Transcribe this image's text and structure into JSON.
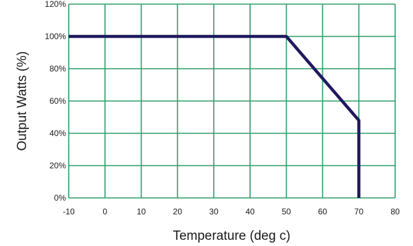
{
  "chart_data": {
    "type": "line",
    "title": "",
    "xlabel": "Temperature (deg c)",
    "ylabel": "Output Watts (%)",
    "xlim": [
      -10,
      80
    ],
    "ylim": [
      0,
      120
    ],
    "x_ticks": [
      -10,
      0,
      10,
      20,
      30,
      40,
      50,
      60,
      70,
      80
    ],
    "y_ticks": [
      0,
      20,
      40,
      60,
      80,
      100,
      120
    ],
    "x_tick_labels": [
      "-10",
      "0",
      "10",
      "20",
      "30",
      "40",
      "50",
      "60",
      "70",
      "80"
    ],
    "y_tick_labels": [
      "0%",
      "20%",
      "40%",
      "60%",
      "80%",
      "100%",
      "120%"
    ],
    "grid": true,
    "grid_color": "#2e9e6a",
    "line_color": "#1f1a5e",
    "series": [
      {
        "x": [
          -10,
          50,
          70,
          70
        ],
        "y": [
          100,
          100,
          48,
          0
        ]
      }
    ]
  }
}
